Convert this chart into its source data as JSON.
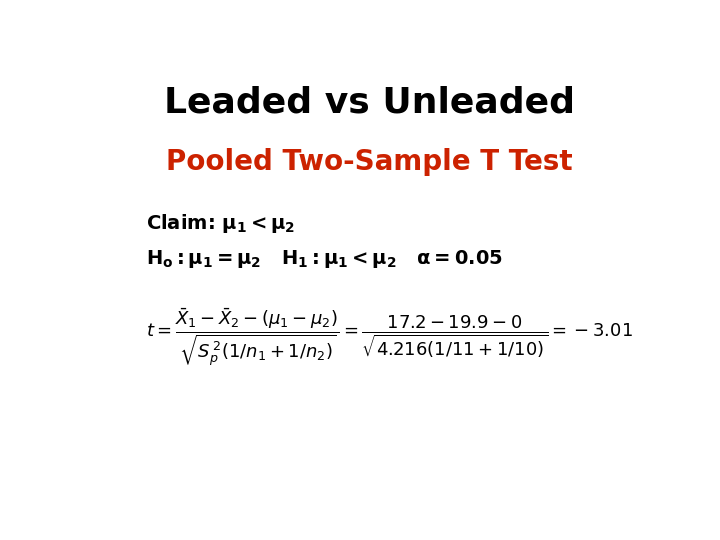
{
  "title": "Leaded vs Unleaded",
  "subtitle": "Pooled Two-Sample T Test",
  "title_color": "#000000",
  "subtitle_color": "#cc2200",
  "background_color": "#ffffff",
  "title_fontsize": 26,
  "subtitle_fontsize": 20,
  "body_fontsize": 14,
  "formula_fontsize": 13
}
